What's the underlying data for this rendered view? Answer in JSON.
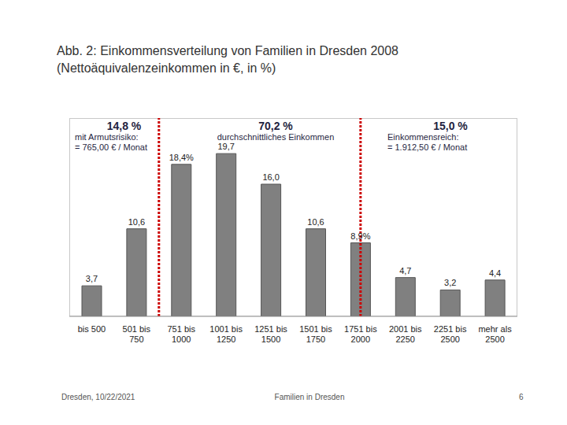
{
  "chart_data": {
    "type": "bar",
    "title": "Abb. 2: Einkommensverteilung von Familien in Dresden 2008",
    "subtitle": "(Nettoäquivalenzeinkommen in €, in %)",
    "categories": [
      "bis 500",
      "501 bis 750",
      "751 bis 1000",
      "1001 bis 1250",
      "1251 bis 1500",
      "1501 bis 1750",
      "1751 bis 2000",
      "2001 bis 2250",
      "2251 bis 2500",
      "mehr als 2500"
    ],
    "values": [
      3.7,
      10.6,
      18.4,
      19.7,
      16.0,
      10.6,
      8.9,
      4.7,
      3.2,
      4.4
    ],
    "value_labels": [
      "3,7",
      "10,6",
      "18,4%",
      "19,7",
      "16,0",
      "10,6",
      "8,9%",
      "4,7",
      "3,2",
      "4,4"
    ],
    "data_labels": true,
    "color": "#808080",
    "ylim": [
      0,
      24
    ],
    "tick_labels": "x",
    "grid": false,
    "reference_lines": [
      "751 bis 1000",
      "1751 bis 2000"
    ],
    "groups": [
      {
        "share": "14,8 %",
        "lines": [
          "mit Armutsrisiko:",
          "= 765,00 € / Monat"
        ]
      },
      {
        "share": "70,2 %",
        "lines": [
          "durchschnittliches Einkommen"
        ]
      },
      {
        "share": "15,0 %",
        "lines": [
          "Einkommensreich:",
          "= 1.912,50 € / Monat"
        ]
      }
    ]
  },
  "footer": {
    "left": "Dresden, 10/22/2021",
    "center": "Familien in Dresden",
    "page": "6"
  }
}
